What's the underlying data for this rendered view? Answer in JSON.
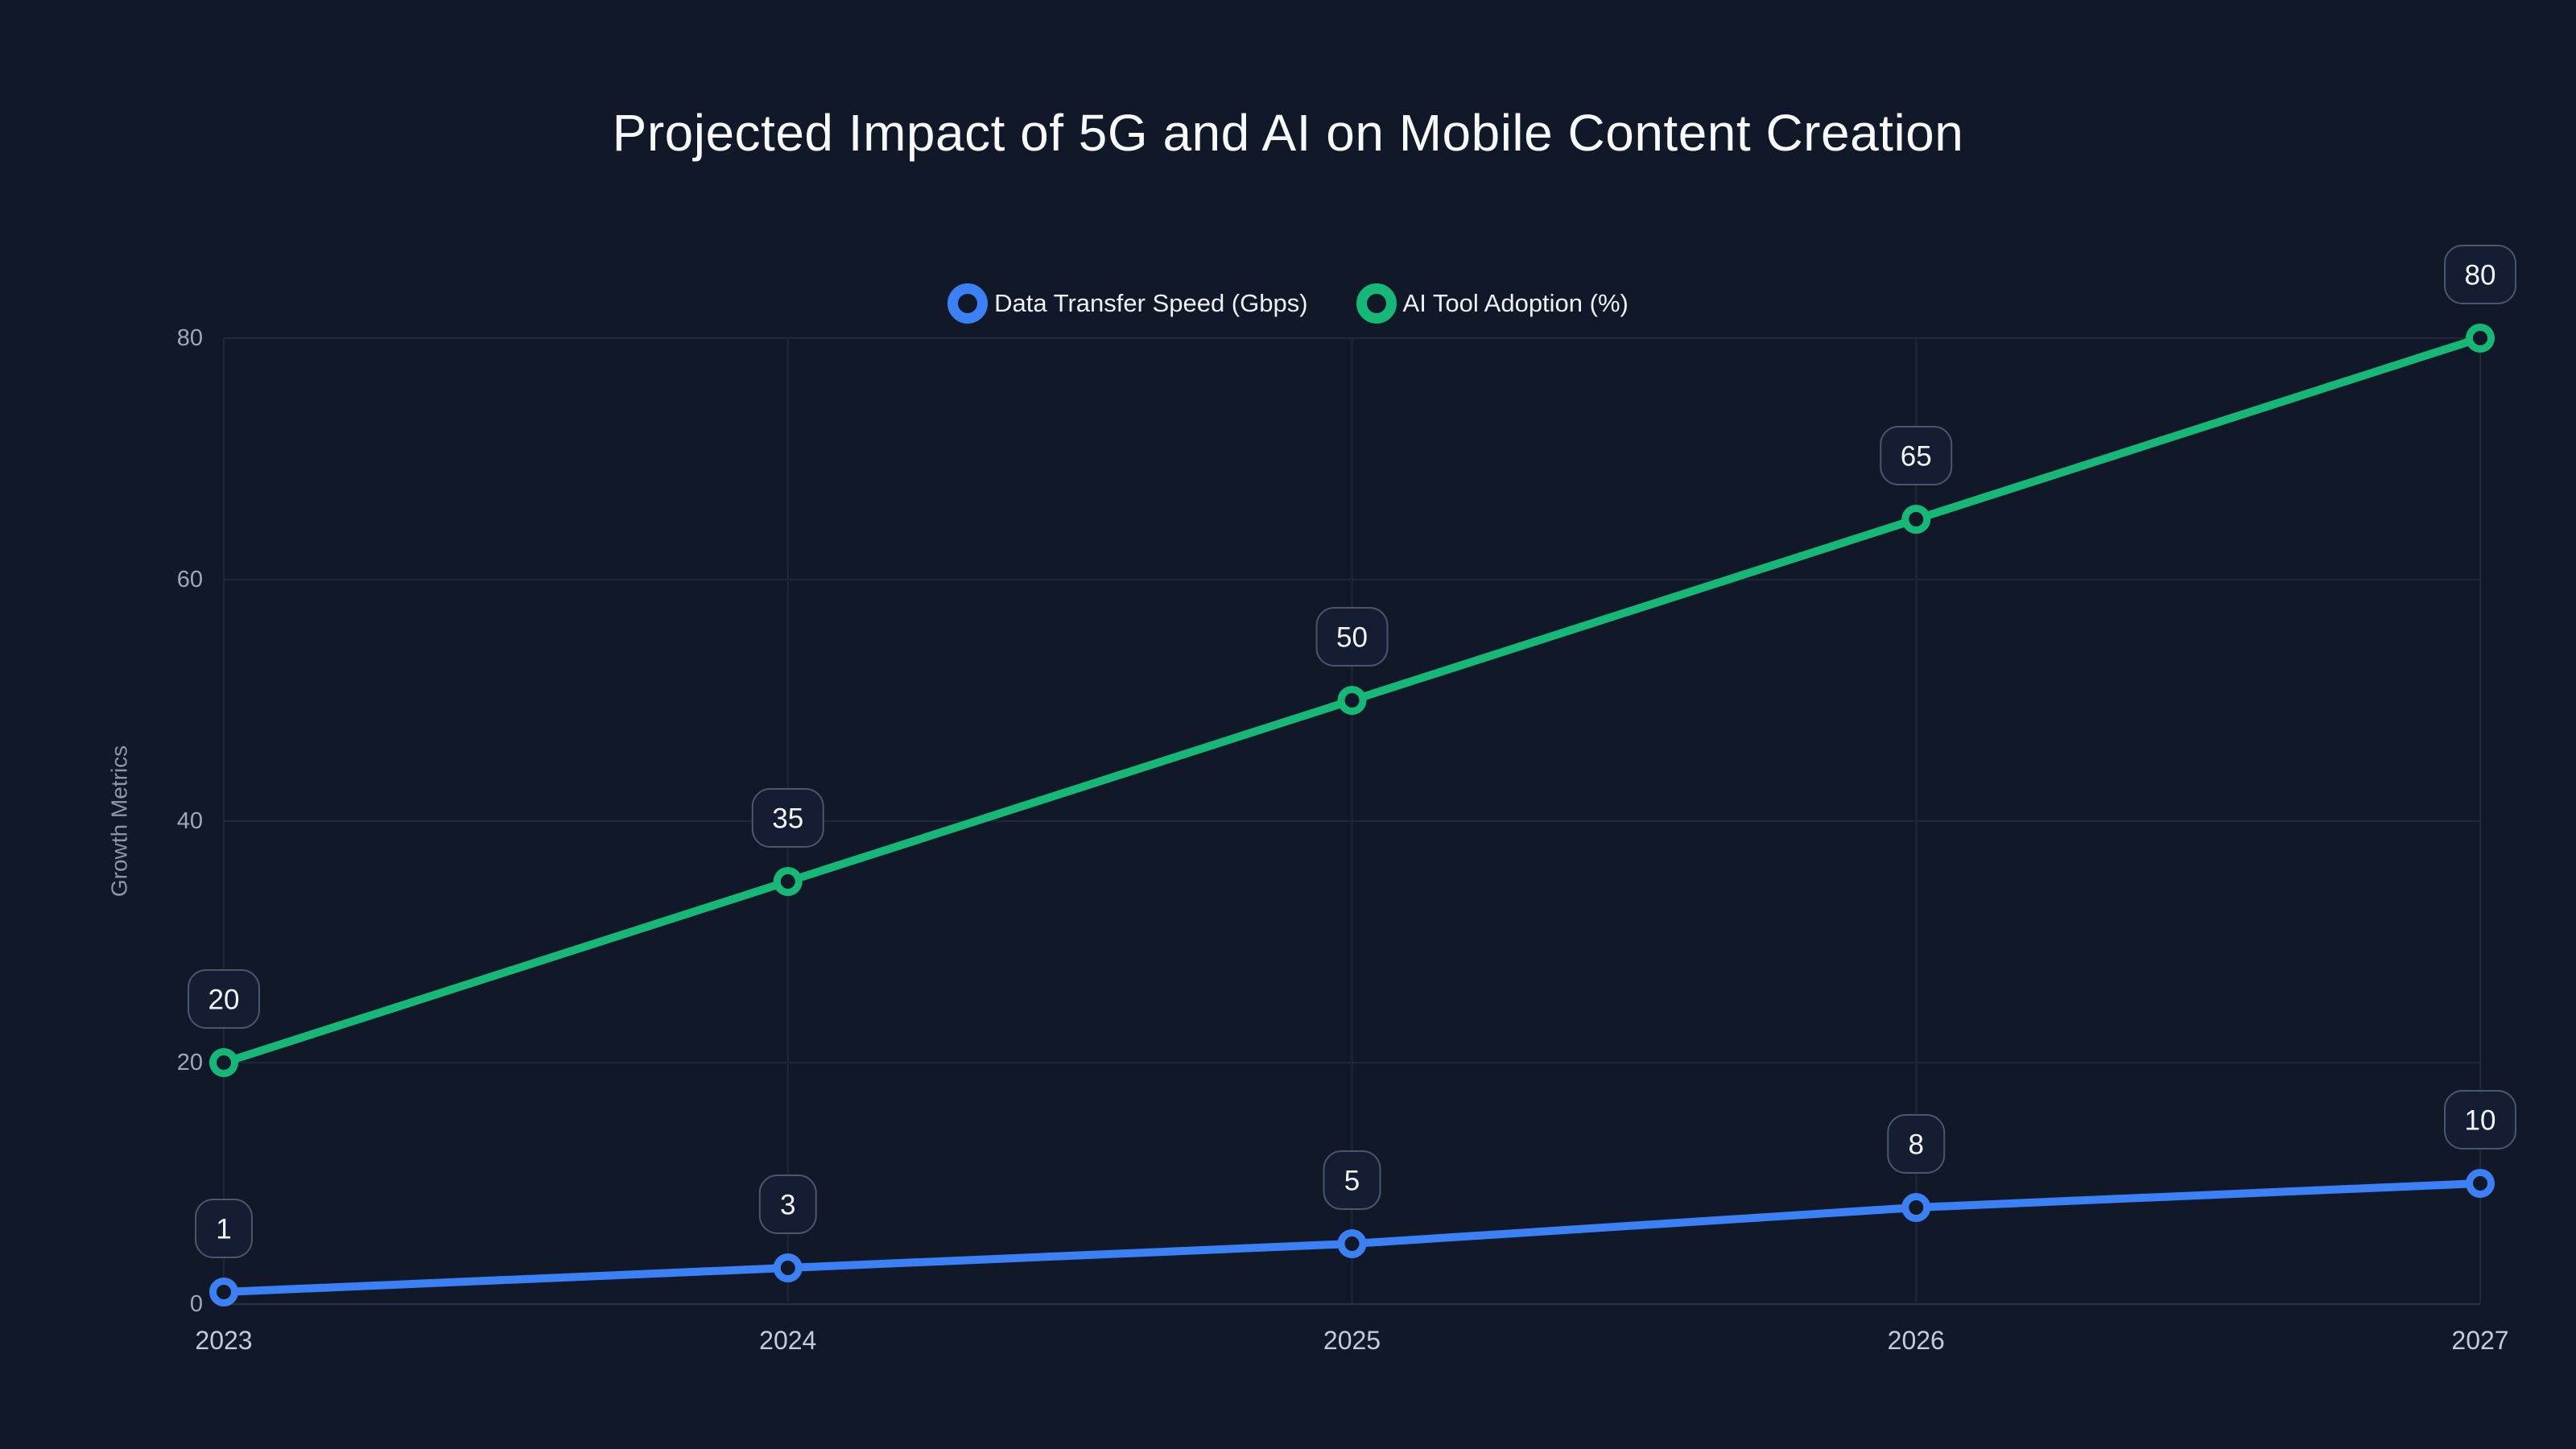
{
  "title": "Projected Impact of 5G and AI on Mobile Content Creation",
  "chart_data": {
    "type": "line",
    "categories": [
      "2023",
      "2024",
      "2025",
      "2026",
      "2027"
    ],
    "series": [
      {
        "name": "Data Transfer Speed (Gbps)",
        "color": "#3C80F6",
        "values": [
          1,
          3,
          5,
          8,
          10
        ]
      },
      {
        "name": "AI Tool Adoption (%)",
        "color": "#16B877",
        "values": [
          20,
          35,
          50,
          65,
          80
        ]
      }
    ],
    "title": "Projected Impact of 5G and AI on Mobile Content Creation",
    "xlabel": "",
    "ylabel": "Growth Metrics",
    "yticks": [
      0,
      20,
      40,
      60,
      80
    ],
    "ylim": [
      0,
      80
    ],
    "grid": true,
    "legend_position": "top-center",
    "point_labels": true,
    "background_color": "#111827"
  }
}
